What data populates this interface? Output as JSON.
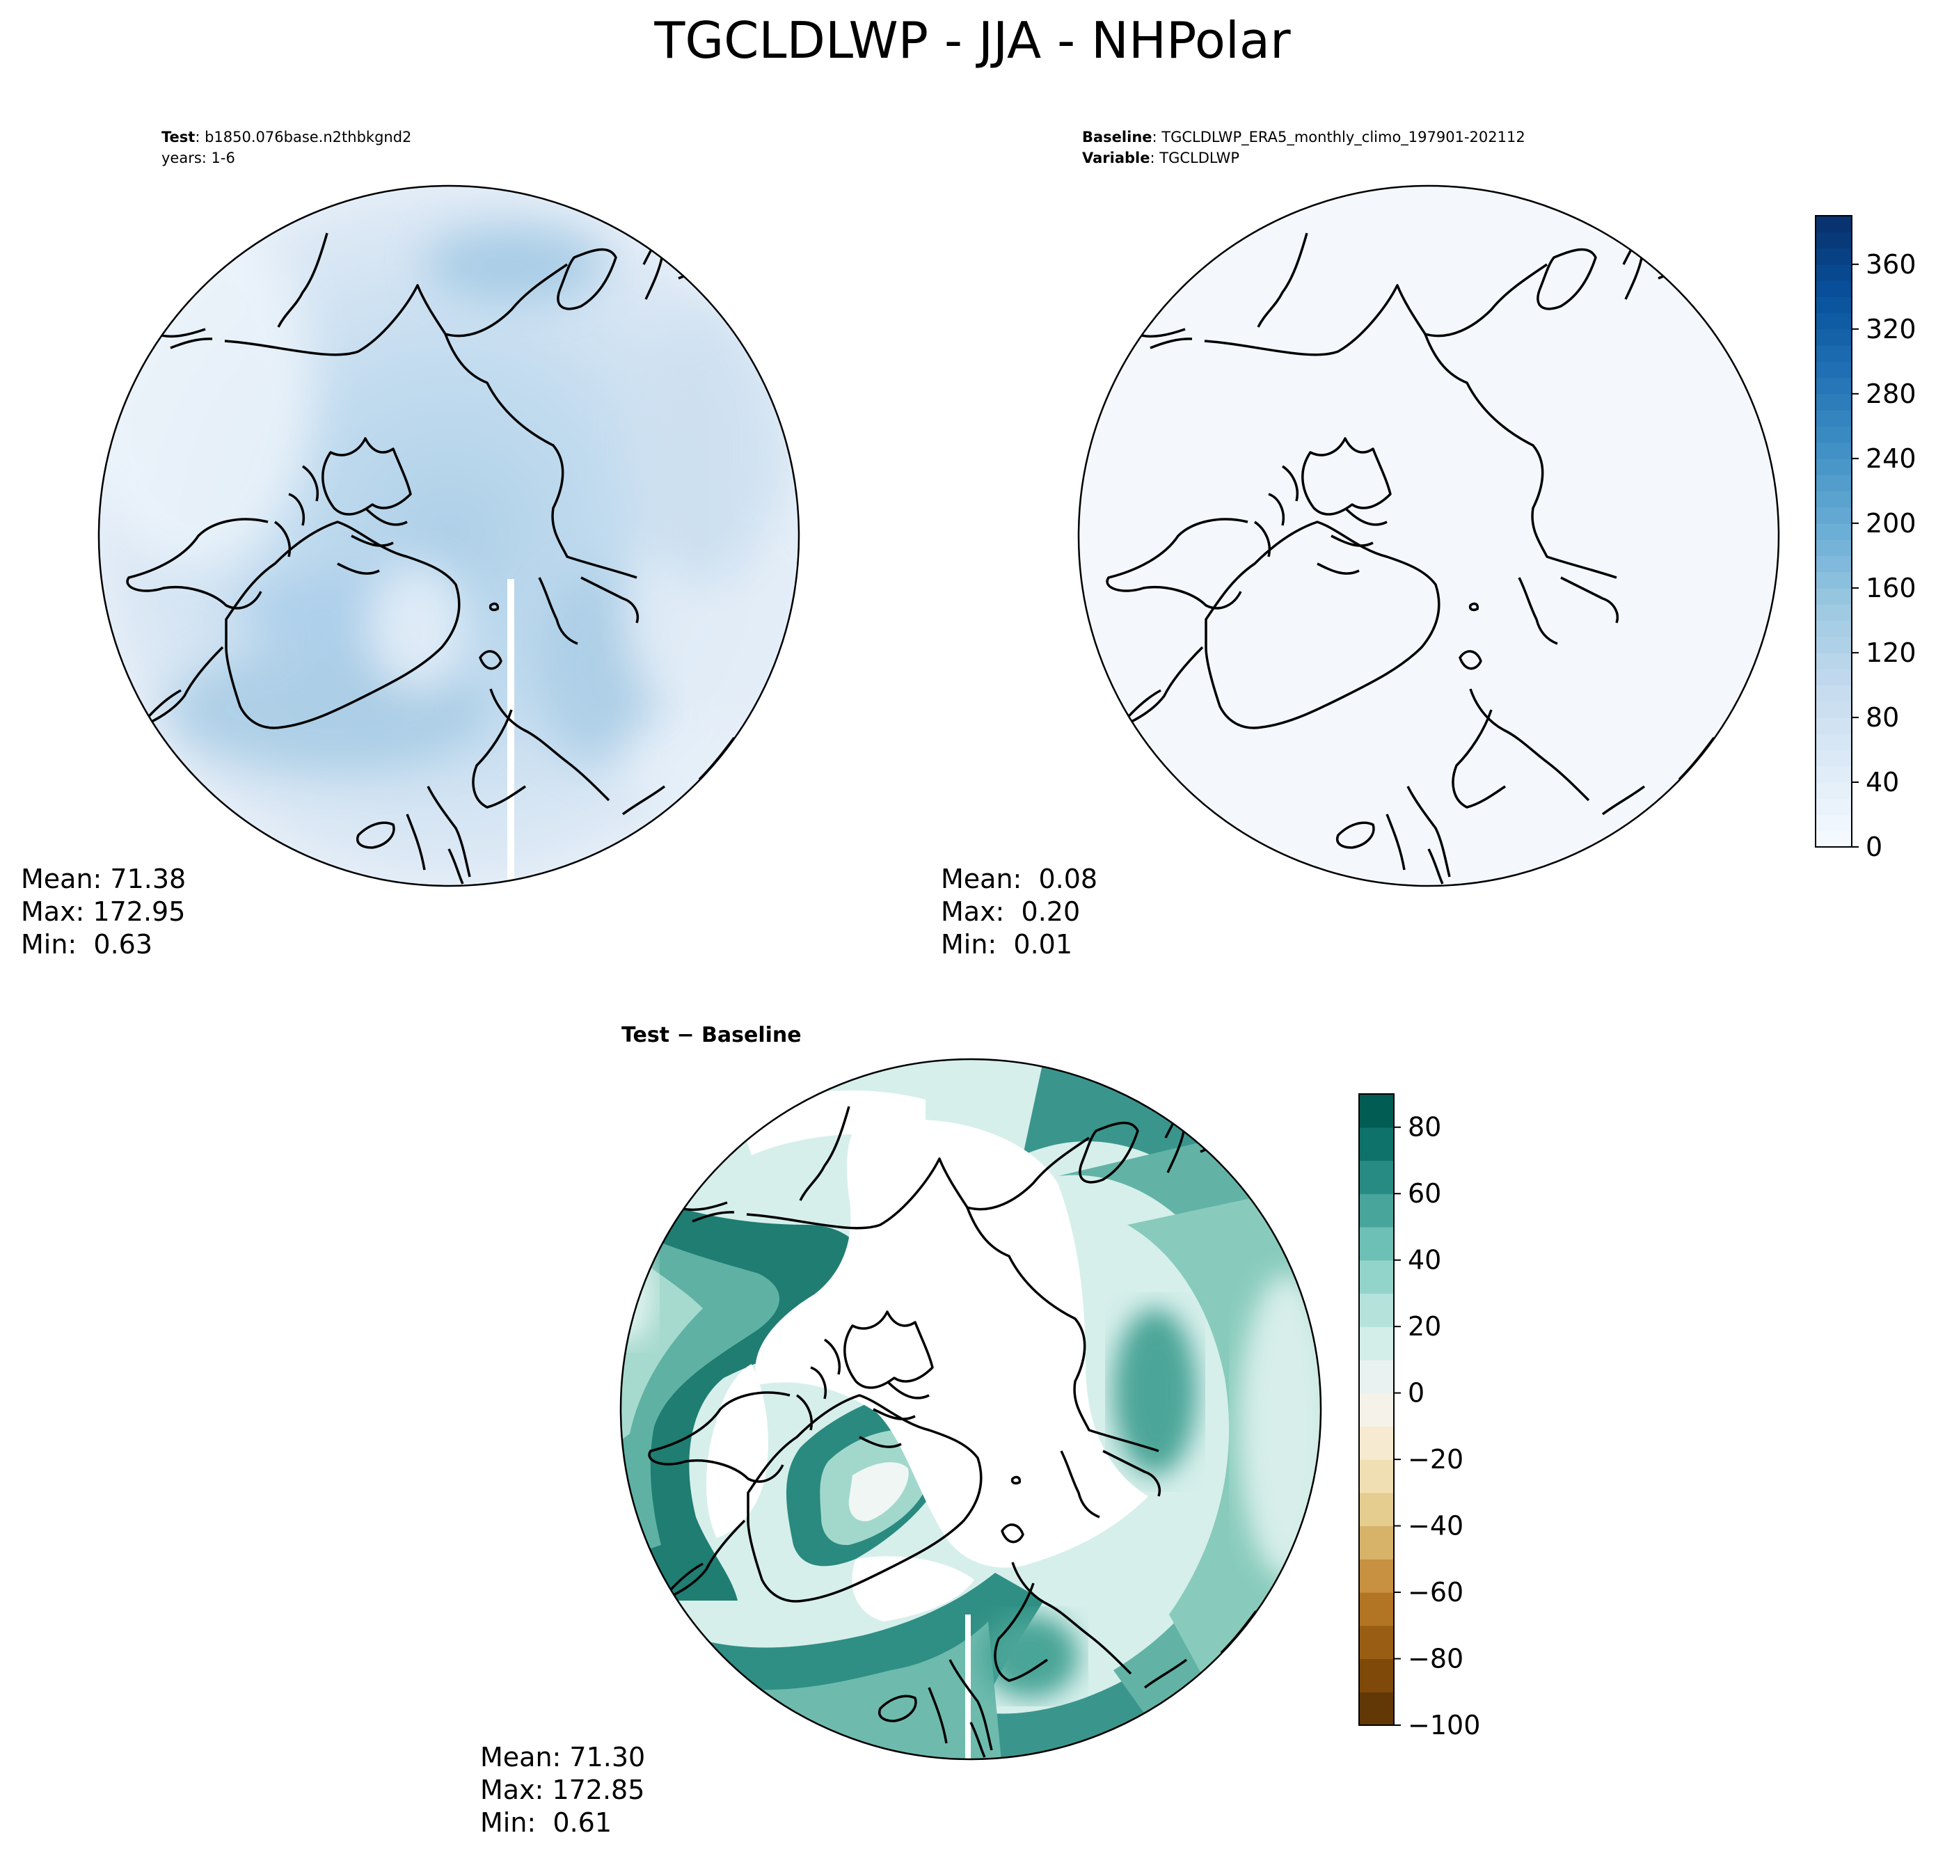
{
  "figure": {
    "title": "TGCLDLWP - JJA - NHPolar"
  },
  "test_panel": {
    "label_key": "Test",
    "label_value": "b1850.076base.n2thbkgnd2",
    "years": "years: 1-6",
    "stats": {
      "mean": "Mean: 71.38",
      "max": "Max: 172.95",
      "min": "Min:  0.63"
    }
  },
  "baseline_panel": {
    "label_key": "Baseline",
    "label_value": "TGCLDLWP_ERA5_monthly_climo_197901-202112",
    "variable_key": "Variable",
    "variable_value": "TGCLDLWP",
    "stats": {
      "mean": "Mean:  0.08",
      "max": "Max:  0.20",
      "min": "Min:  0.01"
    }
  },
  "diff_panel": {
    "title": "Test − Baseline",
    "stats": {
      "mean": "Mean: 71.30",
      "max": "Max: 172.85",
      "min": "Min:  0.61"
    }
  },
  "colors": {
    "blues": [
      "#f7fbff",
      "#deebf7",
      "#c6dbef",
      "#9ecae1",
      "#6baed6",
      "#4292c6",
      "#2171b5",
      "#08519c",
      "#08306b"
    ],
    "brbg_low": "#543005",
    "brbg_mid": "#f5f5f5",
    "brbg_high": "#003c30"
  },
  "chart_data": [
    {
      "type": "heatmap",
      "name": "test",
      "projection": "north-polar-stereographic",
      "colormap": "Blues",
      "mean": 71.38,
      "max": 172.95,
      "min": 0.63
    },
    {
      "type": "heatmap",
      "name": "baseline",
      "projection": "north-polar-stereographic",
      "colormap": "Blues",
      "mean": 0.08,
      "max": 0.2,
      "min": 0.01,
      "colorbar": {
        "range": [
          0,
          390
        ],
        "ticks": [
          0,
          40,
          80,
          120,
          160,
          200,
          240,
          280,
          320,
          360
        ],
        "tick_labels": [
          "0",
          "40",
          "80",
          "120",
          "160",
          "200",
          "240",
          "280",
          "320",
          "360"
        ]
      }
    },
    {
      "type": "heatmap",
      "name": "test-minus-baseline",
      "projection": "north-polar-stereographic",
      "colormap": "BrBG",
      "mean": 71.3,
      "max": 172.85,
      "min": 0.61,
      "colorbar": {
        "range": [
          -100,
          90
        ],
        "levels": [
          -100,
          -90,
          -80,
          -70,
          -60,
          -50,
          -40,
          -30,
          -20,
          -10,
          0,
          10,
          20,
          30,
          40,
          50,
          60,
          70,
          80,
          90
        ],
        "ticks": [
          -100,
          -80,
          -60,
          -40,
          -20,
          0,
          20,
          40,
          60,
          80
        ],
        "tick_labels": [
          "−100",
          "−80",
          "−60",
          "−40",
          "−20",
          "0",
          "20",
          "40",
          "60",
          "80"
        ]
      }
    }
  ]
}
